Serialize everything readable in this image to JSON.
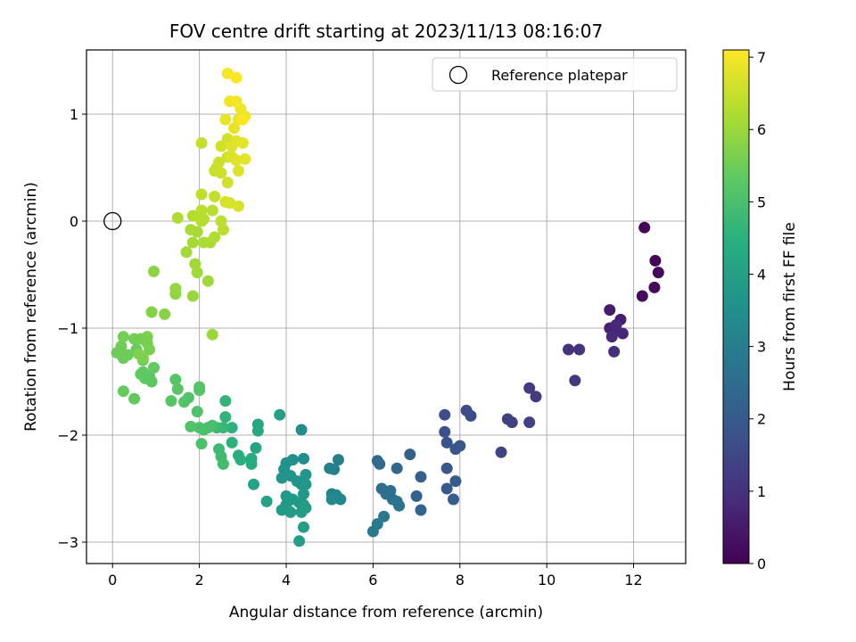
{
  "chart_data": {
    "type": "scatter",
    "title": "FOV centre drift starting at 2023/11/13 08:16:07",
    "xlabel": "Angular distance from reference (arcmin)",
    "ylabel": "Rotation from reference (arcmin)",
    "xlim": [
      -0.6,
      13.2
    ],
    "ylim": [
      -3.2,
      1.6
    ],
    "xticks": [
      0,
      2,
      4,
      6,
      8,
      10,
      12
    ],
    "yticks": [
      1,
      0,
      -1,
      -2,
      -3
    ],
    "grid": true,
    "legend": {
      "placement": "top-right",
      "entries": [
        "Reference platepar"
      ]
    },
    "reference_point": {
      "x": 0,
      "y": 0,
      "marker": "open-circle"
    },
    "colorbar": {
      "label": "Hours from first FF file",
      "colormap": "viridis",
      "range": [
        0,
        7.1
      ],
      "ticks": [
        0,
        1,
        2,
        3,
        4,
        5,
        6,
        7
      ]
    },
    "points": [
      {
        "x": 12.25,
        "y": -0.06,
        "c": 0.05
      },
      {
        "x": 12.5,
        "y": -0.37,
        "c": 0.1
      },
      {
        "x": 12.57,
        "y": -0.48,
        "c": 0.15
      },
      {
        "x": 12.48,
        "y": -0.62,
        "c": 0.2
      },
      {
        "x": 12.2,
        "y": -0.7,
        "c": 0.25
      },
      {
        "x": 11.45,
        "y": -0.83,
        "c": 0.55
      },
      {
        "x": 11.7,
        "y": -0.92,
        "c": 0.6
      },
      {
        "x": 11.45,
        "y": -1.0,
        "c": 0.65
      },
      {
        "x": 11.55,
        "y": -1.03,
        "c": 0.7
      },
      {
        "x": 11.75,
        "y": -1.05,
        "c": 0.75
      },
      {
        "x": 11.6,
        "y": -0.97,
        "c": 0.8
      },
      {
        "x": 11.5,
        "y": -1.08,
        "c": 0.85
      },
      {
        "x": 11.55,
        "y": -1.22,
        "c": 0.9
      },
      {
        "x": 10.5,
        "y": -1.2,
        "c": 1.0
      },
      {
        "x": 10.75,
        "y": -1.2,
        "c": 1.05
      },
      {
        "x": 10.65,
        "y": -1.49,
        "c": 1.1
      },
      {
        "x": 9.6,
        "y": -1.56,
        "c": 1.2
      },
      {
        "x": 9.75,
        "y": -1.64,
        "c": 1.25
      },
      {
        "x": 9.1,
        "y": -1.85,
        "c": 1.3
      },
      {
        "x": 9.2,
        "y": -1.88,
        "c": 1.35
      },
      {
        "x": 9.6,
        "y": -1.88,
        "c": 1.4
      },
      {
        "x": 8.95,
        "y": -2.16,
        "c": 1.45
      },
      {
        "x": 8.15,
        "y": -1.77,
        "c": 1.6
      },
      {
        "x": 8.25,
        "y": -1.82,
        "c": 1.65
      },
      {
        "x": 7.65,
        "y": -1.81,
        "c": 1.7
      },
      {
        "x": 7.65,
        "y": -1.97,
        "c": 1.75
      },
      {
        "x": 7.7,
        "y": -2.07,
        "c": 1.8
      },
      {
        "x": 7.9,
        "y": -2.13,
        "c": 1.85
      },
      {
        "x": 8.0,
        "y": -2.1,
        "c": 1.9
      },
      {
        "x": 7.7,
        "y": -2.31,
        "c": 1.95
      },
      {
        "x": 7.7,
        "y": -2.5,
        "c": 2.0
      },
      {
        "x": 7.9,
        "y": -2.43,
        "c": 2.05
      },
      {
        "x": 7.85,
        "y": -2.6,
        "c": 2.1
      },
      {
        "x": 6.85,
        "y": -2.18,
        "c": 2.15
      },
      {
        "x": 7.1,
        "y": -2.39,
        "c": 2.2
      },
      {
        "x": 7.0,
        "y": -2.57,
        "c": 2.25
      },
      {
        "x": 7.1,
        "y": -2.7,
        "c": 2.3
      },
      {
        "x": 6.55,
        "y": -2.31,
        "c": 2.35
      },
      {
        "x": 6.1,
        "y": -2.24,
        "c": 2.4
      },
      {
        "x": 6.15,
        "y": -2.27,
        "c": 2.45
      },
      {
        "x": 6.2,
        "y": -2.5,
        "c": 2.5
      },
      {
        "x": 6.3,
        "y": -2.55,
        "c": 2.55
      },
      {
        "x": 6.4,
        "y": -2.52,
        "c": 2.6
      },
      {
        "x": 6.45,
        "y": -2.6,
        "c": 2.65
      },
      {
        "x": 6.55,
        "y": -2.62,
        "c": 2.7
      },
      {
        "x": 6.6,
        "y": -2.66,
        "c": 2.75
      },
      {
        "x": 6.25,
        "y": -2.76,
        "c": 2.8
      },
      {
        "x": 6.1,
        "y": -2.83,
        "c": 2.85
      },
      {
        "x": 6.0,
        "y": -2.9,
        "c": 2.9
      },
      {
        "x": 5.2,
        "y": -2.23,
        "c": 3.0
      },
      {
        "x": 5.1,
        "y": -2.32,
        "c": 3.05
      },
      {
        "x": 5.0,
        "y": -2.31,
        "c": 3.1
      },
      {
        "x": 5.05,
        "y": -2.55,
        "c": 3.15
      },
      {
        "x": 5.15,
        "y": -2.56,
        "c": 3.2
      },
      {
        "x": 5.25,
        "y": -2.6,
        "c": 3.25
      },
      {
        "x": 5.05,
        "y": -2.6,
        "c": 3.3
      },
      {
        "x": 4.35,
        "y": -1.95,
        "c": 3.4
      },
      {
        "x": 4.4,
        "y": -2.22,
        "c": 3.45
      },
      {
        "x": 4.15,
        "y": -2.23,
        "c": 3.5
      },
      {
        "x": 4.0,
        "y": -2.26,
        "c": 3.55
      },
      {
        "x": 3.95,
        "y": -2.32,
        "c": 3.6
      },
      {
        "x": 3.9,
        "y": -2.4,
        "c": 3.62
      },
      {
        "x": 4.1,
        "y": -2.38,
        "c": 3.64
      },
      {
        "x": 4.25,
        "y": -2.43,
        "c": 3.66
      },
      {
        "x": 4.35,
        "y": -2.46,
        "c": 3.68
      },
      {
        "x": 4.45,
        "y": -2.37,
        "c": 3.7
      },
      {
        "x": 4.45,
        "y": -2.46,
        "c": 3.72
      },
      {
        "x": 4.4,
        "y": -2.55,
        "c": 3.74
      },
      {
        "x": 4.0,
        "y": -2.57,
        "c": 3.76
      },
      {
        "x": 4.15,
        "y": -2.6,
        "c": 3.78
      },
      {
        "x": 4.3,
        "y": -2.63,
        "c": 3.8
      },
      {
        "x": 4.4,
        "y": -2.65,
        "c": 3.82
      },
      {
        "x": 4.0,
        "y": -2.65,
        "c": 3.84
      },
      {
        "x": 3.9,
        "y": -2.7,
        "c": 3.86
      },
      {
        "x": 4.1,
        "y": -2.72,
        "c": 3.88
      },
      {
        "x": 4.35,
        "y": -2.72,
        "c": 3.9
      },
      {
        "x": 4.45,
        "y": -2.68,
        "c": 3.92
      },
      {
        "x": 4.4,
        "y": -2.86,
        "c": 3.94
      },
      {
        "x": 4.3,
        "y": -2.99,
        "c": 3.96
      },
      {
        "x": 3.85,
        "y": -1.81,
        "c": 4.0
      },
      {
        "x": 3.55,
        "y": -2.62,
        "c": 4.05
      },
      {
        "x": 3.25,
        "y": -2.46,
        "c": 4.1
      },
      {
        "x": 3.3,
        "y": -2.12,
        "c": 4.15
      },
      {
        "x": 3.35,
        "y": -1.9,
        "c": 4.2
      },
      {
        "x": 3.35,
        "y": -1.96,
        "c": 4.25
      },
      {
        "x": 3.2,
        "y": -2.22,
        "c": 4.3
      },
      {
        "x": 3.2,
        "y": -2.27,
        "c": 4.35
      },
      {
        "x": 2.9,
        "y": -2.19,
        "c": 4.4
      },
      {
        "x": 2.95,
        "y": -2.23,
        "c": 4.45
      },
      {
        "x": 2.75,
        "y": -2.07,
        "c": 4.5
      },
      {
        "x": 2.75,
        "y": -1.93,
        "c": 4.55
      },
      {
        "x": 2.6,
        "y": -1.83,
        "c": 4.6
      },
      {
        "x": 2.6,
        "y": -1.68,
        "c": 4.65
      },
      {
        "x": 2.55,
        "y": -1.93,
        "c": 4.7
      },
      {
        "x": 2.4,
        "y": -1.93,
        "c": 4.75
      },
      {
        "x": 2.45,
        "y": -2.13,
        "c": 4.8
      },
      {
        "x": 2.5,
        "y": -2.2,
        "c": 4.85
      },
      {
        "x": 2.55,
        "y": -2.27,
        "c": 4.9
      },
      {
        "x": 2.3,
        "y": -1.91,
        "c": 4.95
      },
      {
        "x": 2.2,
        "y": -1.93,
        "c": 5.0
      },
      {
        "x": 2.1,
        "y": -1.95,
        "c": 5.02
      },
      {
        "x": 2.0,
        "y": -1.93,
        "c": 5.04
      },
      {
        "x": 2.05,
        "y": -2.08,
        "c": 5.06
      },
      {
        "x": 1.95,
        "y": -1.78,
        "c": 5.08
      },
      {
        "x": 1.8,
        "y": -1.92,
        "c": 5.1
      },
      {
        "x": 1.75,
        "y": -1.65,
        "c": 5.12
      },
      {
        "x": 1.65,
        "y": -1.69,
        "c": 5.14
      },
      {
        "x": 2.0,
        "y": -1.55,
        "c": 5.16
      },
      {
        "x": 2.0,
        "y": -1.58,
        "c": 5.18
      },
      {
        "x": 1.45,
        "y": -1.48,
        "c": 5.2
      },
      {
        "x": 1.5,
        "y": -1.57,
        "c": 5.22
      },
      {
        "x": 1.35,
        "y": -1.68,
        "c": 5.24
      },
      {
        "x": 0.9,
        "y": -1.5,
        "c": 5.26
      },
      {
        "x": 0.85,
        "y": -1.45,
        "c": 5.28
      },
      {
        "x": 0.75,
        "y": -1.47,
        "c": 5.3
      },
      {
        "x": 0.7,
        "y": -1.41,
        "c": 5.32
      },
      {
        "x": 0.65,
        "y": -1.43,
        "c": 5.34
      },
      {
        "x": 0.95,
        "y": -1.37,
        "c": 5.36
      },
      {
        "x": 0.5,
        "y": -1.66,
        "c": 5.38
      },
      {
        "x": 0.25,
        "y": -1.59,
        "c": 5.4
      },
      {
        "x": 0.7,
        "y": -1.3,
        "c": 5.42
      },
      {
        "x": 0.55,
        "y": -1.2,
        "c": 5.44
      },
      {
        "x": 0.35,
        "y": -1.25,
        "c": 5.46
      },
      {
        "x": 0.25,
        "y": -1.28,
        "c": 5.48
      },
      {
        "x": 0.1,
        "y": -1.23,
        "c": 5.5
      },
      {
        "x": 0.2,
        "y": -1.17,
        "c": 5.52
      },
      {
        "x": 0.5,
        "y": -1.1,
        "c": 5.54
      },
      {
        "x": 0.25,
        "y": -1.08,
        "c": 5.56
      },
      {
        "x": 0.65,
        "y": -1.1,
        "c": 5.58
      },
      {
        "x": 0.8,
        "y": -1.14,
        "c": 5.6
      },
      {
        "x": 0.85,
        "y": -1.2,
        "c": 5.62
      },
      {
        "x": 0.6,
        "y": -1.24,
        "c": 5.64
      },
      {
        "x": 0.8,
        "y": -1.08,
        "c": 5.66
      },
      {
        "x": 0.7,
        "y": -1.28,
        "c": 5.68
      },
      {
        "x": 0.9,
        "y": -0.85,
        "c": 5.75
      },
      {
        "x": 1.2,
        "y": -0.87,
        "c": 5.8
      },
      {
        "x": 0.95,
        "y": -0.47,
        "c": 5.85
      },
      {
        "x": 1.45,
        "y": -0.68,
        "c": 5.9
      },
      {
        "x": 1.45,
        "y": -0.63,
        "c": 5.95
      },
      {
        "x": 1.85,
        "y": -0.7,
        "c": 6.0
      },
      {
        "x": 2.3,
        "y": -1.06,
        "c": 6.02
      },
      {
        "x": 2.2,
        "y": -0.56,
        "c": 6.04
      },
      {
        "x": 1.95,
        "y": -0.48,
        "c": 6.06
      },
      {
        "x": 1.9,
        "y": -0.4,
        "c": 6.08
      },
      {
        "x": 1.7,
        "y": -0.29,
        "c": 6.1
      },
      {
        "x": 1.85,
        "y": -0.2,
        "c": 6.12
      },
      {
        "x": 1.95,
        "y": -0.1,
        "c": 6.14
      },
      {
        "x": 1.8,
        "y": -0.08,
        "c": 6.16
      },
      {
        "x": 2.1,
        "y": -0.2,
        "c": 6.18
      },
      {
        "x": 2.25,
        "y": -0.2,
        "c": 6.2
      },
      {
        "x": 2.35,
        "y": -0.15,
        "c": 6.22
      },
      {
        "x": 1.5,
        "y": 0.03,
        "c": 6.24
      },
      {
        "x": 1.85,
        "y": 0.05,
        "c": 6.26
      },
      {
        "x": 2.0,
        "y": 0.05,
        "c": 6.28
      },
      {
        "x": 2.05,
        "y": 0.0,
        "c": 6.3
      },
      {
        "x": 2.1,
        "y": 0.02,
        "c": 6.32
      },
      {
        "x": 2.05,
        "y": 0.1,
        "c": 6.34
      },
      {
        "x": 2.3,
        "y": 0.1,
        "c": 6.36
      },
      {
        "x": 2.5,
        "y": 0.0,
        "c": 6.38
      },
      {
        "x": 2.55,
        "y": -0.08,
        "c": 6.4
      },
      {
        "x": 2.05,
        "y": 0.25,
        "c": 6.42
      },
      {
        "x": 2.35,
        "y": 0.23,
        "c": 6.44
      },
      {
        "x": 2.05,
        "y": 0.73,
        "c": 6.46
      },
      {
        "x": 2.35,
        "y": 0.47,
        "c": 6.5
      },
      {
        "x": 2.4,
        "y": 0.5,
        "c": 6.52
      },
      {
        "x": 2.45,
        "y": 0.55,
        "c": 6.54
      },
      {
        "x": 2.5,
        "y": 0.45,
        "c": 6.56
      },
      {
        "x": 2.65,
        "y": 0.36,
        "c": 6.58
      },
      {
        "x": 2.5,
        "y": 0.7,
        "c": 6.6
      },
      {
        "x": 2.65,
        "y": 0.6,
        "c": 6.62
      },
      {
        "x": 2.65,
        "y": 0.77,
        "c": 6.64
      },
      {
        "x": 2.7,
        "y": 0.17,
        "c": 6.66
      },
      {
        "x": 2.6,
        "y": 0.18,
        "c": 6.68
      },
      {
        "x": 2.9,
        "y": 0.14,
        "c": 6.7
      },
      {
        "x": 2.75,
        "y": 0.6,
        "c": 6.72
      },
      {
        "x": 2.85,
        "y": 0.57,
        "c": 6.74
      },
      {
        "x": 2.9,
        "y": 0.47,
        "c": 6.76
      },
      {
        "x": 2.75,
        "y": 0.7,
        "c": 6.78
      },
      {
        "x": 2.85,
        "y": 0.75,
        "c": 6.8
      },
      {
        "x": 3.0,
        "y": 0.73,
        "c": 6.82
      },
      {
        "x": 3.05,
        "y": 0.58,
        "c": 6.84
      },
      {
        "x": 2.8,
        "y": 0.87,
        "c": 6.86
      },
      {
        "x": 2.6,
        "y": 0.95,
        "c": 6.88
      },
      {
        "x": 2.9,
        "y": 0.95,
        "c": 6.9
      },
      {
        "x": 3.05,
        "y": 0.98,
        "c": 6.92
      },
      {
        "x": 2.95,
        "y": 1.05,
        "c": 6.94
      },
      {
        "x": 2.7,
        "y": 1.12,
        "c": 6.96
      },
      {
        "x": 2.85,
        "y": 1.12,
        "c": 6.98
      },
      {
        "x": 2.65,
        "y": 1.38,
        "c": 7.02
      },
      {
        "x": 2.85,
        "y": 1.34,
        "c": 7.06
      },
      {
        "x": 3.0,
        "y": 0.95,
        "c": 7.08
      }
    ]
  }
}
